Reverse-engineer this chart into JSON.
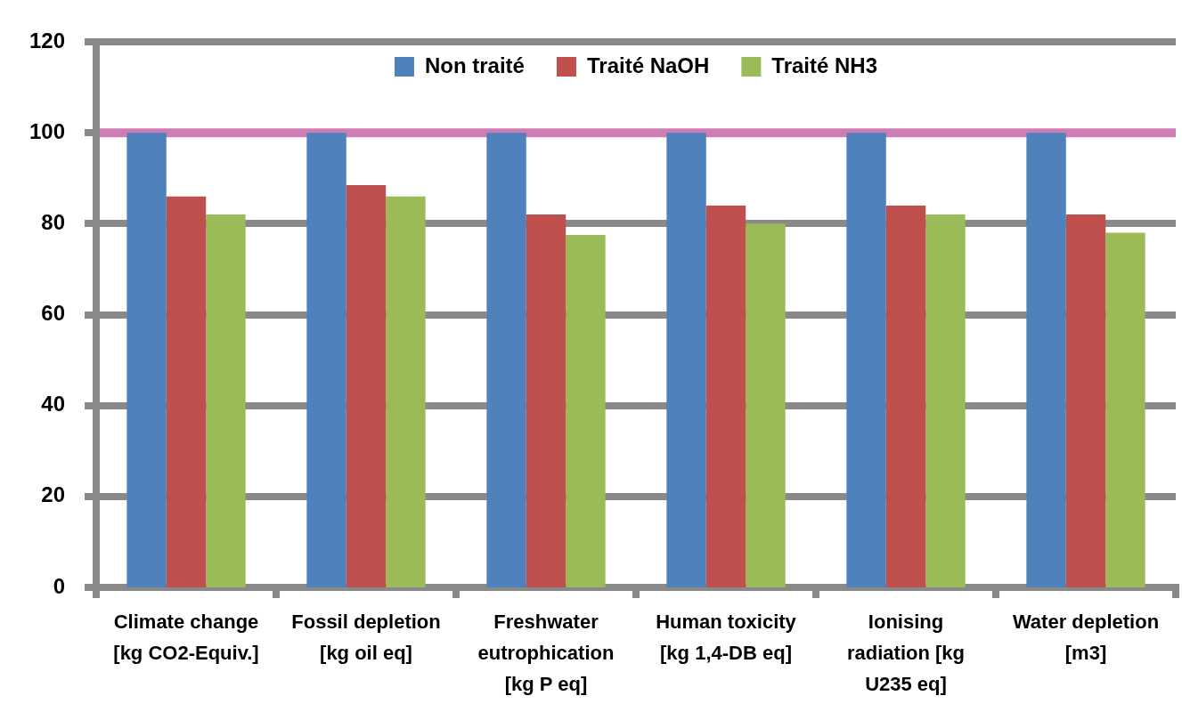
{
  "chart_data": {
    "type": "bar",
    "categories": [
      "Climate change [kg CO2-Equiv.]",
      "Fossil depletion [kg oil eq]",
      "Freshwater eutrophication [kg P eq]",
      "Human toxicity [kg 1,4-DB eq]",
      "Ionising radiation [kg U235 eq]",
      "Water depletion [m3]"
    ],
    "series": [
      {
        "name": "Non traité",
        "color": "#4f81bd",
        "values": [
          100,
          100,
          100,
          100,
          100,
          100
        ]
      },
      {
        "name": "Traité NaOH",
        "color": "#c0504d",
        "values": [
          86,
          88.5,
          82,
          84,
          84,
          82
        ]
      },
      {
        "name": "Traité NH3",
        "color": "#9bbb59",
        "values": [
          82,
          86,
          77.5,
          80,
          82,
          78
        ]
      }
    ],
    "ylim": [
      0,
      120
    ],
    "yticks": [
      0,
      20,
      40,
      60,
      80,
      100,
      120
    ],
    "grid": "y",
    "legend": "top",
    "ref_lines": [
      {
        "axis": "y",
        "value": 100,
        "color": "#cf7db5"
      }
    ]
  }
}
